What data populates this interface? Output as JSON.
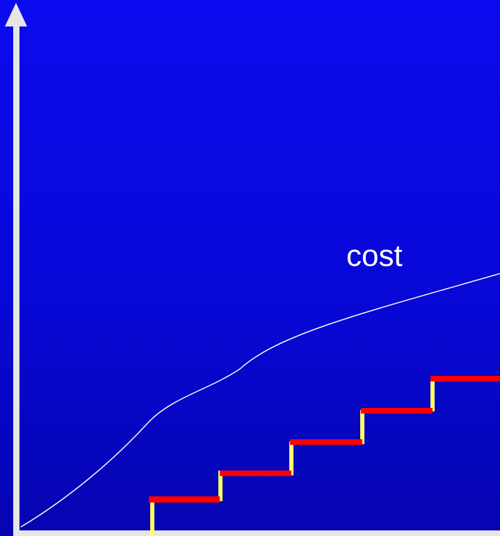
{
  "diagram": {
    "curve_label": "cost",
    "colors": {
      "background": "#0808d8",
      "axis": "#e6e6e6",
      "curve": "#ffffff",
      "step_tread": "#ff0000",
      "step_riser": "#ffff66"
    }
  }
}
